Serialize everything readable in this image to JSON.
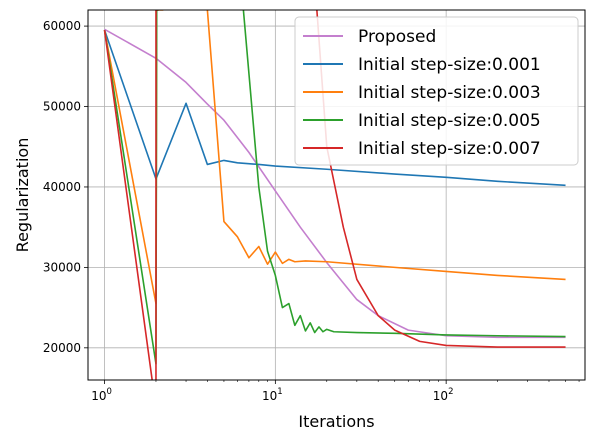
{
  "chart_data": {
    "type": "line",
    "title": "",
    "xlabel": "Iterations",
    "ylabel": "Regularization",
    "xscale": "log",
    "xlim": [
      0.8,
      650
    ],
    "ylim": [
      16000,
      62000
    ],
    "grid": true,
    "legend_position": "upper right",
    "x_ticks": [
      {
        "value": 1,
        "base": "10",
        "exp": "0"
      },
      {
        "value": 10,
        "base": "10",
        "exp": "1"
      },
      {
        "value": 100,
        "base": "10",
        "exp": "2"
      }
    ],
    "y_ticks": [
      {
        "value": 20000,
        "label": "20000"
      },
      {
        "value": 30000,
        "label": "30000"
      },
      {
        "value": 40000,
        "label": "40000"
      },
      {
        "value": 50000,
        "label": "50000"
      },
      {
        "value": 60000,
        "label": "60000"
      }
    ],
    "series": [
      {
        "name": "Proposed",
        "color": "#c47fce",
        "points": [
          [
            1,
            59600
          ],
          [
            2,
            56000
          ],
          [
            3,
            53000
          ],
          [
            4,
            50300
          ],
          [
            5,
            48300
          ],
          [
            7,
            44300
          ],
          [
            10,
            39500
          ],
          [
            14,
            35000
          ],
          [
            20,
            30600
          ],
          [
            30,
            26000
          ],
          [
            40,
            24000
          ],
          [
            60,
            22200
          ],
          [
            100,
            21500
          ],
          [
            200,
            21300
          ],
          [
            500,
            21300
          ]
        ]
      },
      {
        "name": "Initial step-size:0.001",
        "color": "#1f77b4",
        "points": [
          [
            1,
            59500
          ],
          [
            2,
            41000
          ],
          [
            3,
            50400
          ],
          [
            4,
            42800
          ],
          [
            5,
            43300
          ],
          [
            6,
            43000
          ],
          [
            8,
            42800
          ],
          [
            10,
            42600
          ],
          [
            20,
            42200
          ],
          [
            50,
            41600
          ],
          [
            100,
            41200
          ],
          [
            200,
            40700
          ],
          [
            500,
            40200
          ]
        ]
      },
      {
        "name": "Initial step-size:0.003",
        "color": "#ff7f0e",
        "points": [
          [
            1,
            59500
          ],
          [
            2,
            25500
          ],
          [
            2.02,
            62000
          ],
          [
            2.2,
            62000
          ],
          [
            2.25,
            65000
          ],
          [
            3.7,
            65000
          ],
          [
            4,
            62000
          ],
          [
            5,
            35700
          ],
          [
            6,
            33800
          ],
          [
            7,
            31200
          ],
          [
            8,
            32600
          ],
          [
            9,
            30400
          ],
          [
            10,
            31900
          ],
          [
            11,
            30500
          ],
          [
            12,
            31000
          ],
          [
            13,
            30700
          ],
          [
            15,
            30800
          ],
          [
            20,
            30700
          ],
          [
            50,
            30000
          ],
          [
            100,
            29500
          ],
          [
            200,
            29000
          ],
          [
            500,
            28500
          ]
        ]
      },
      {
        "name": "Initial step-size:0.005",
        "color": "#2ca02c",
        "points": [
          [
            1,
            59500
          ],
          [
            2,
            18000
          ],
          [
            2.02,
            62000
          ],
          [
            2.06,
            62000
          ],
          [
            2.08,
            65000
          ],
          [
            6.4,
            65000
          ],
          [
            6.5,
            62000
          ],
          [
            8,
            40000
          ],
          [
            9,
            32000
          ],
          [
            10,
            29000
          ],
          [
            11,
            25000
          ],
          [
            12,
            25500
          ],
          [
            13,
            22800
          ],
          [
            14,
            24000
          ],
          [
            15,
            22100
          ],
          [
            16,
            23100
          ],
          [
            17,
            21900
          ],
          [
            18,
            22600
          ],
          [
            19,
            22000
          ],
          [
            20,
            22300
          ],
          [
            22,
            22000
          ],
          [
            30,
            21900
          ],
          [
            50,
            21800
          ],
          [
            100,
            21600
          ],
          [
            200,
            21500
          ],
          [
            500,
            21400
          ]
        ]
      },
      {
        "name": "Initial step-size:0.007",
        "color": "#d62728",
        "points": [
          [
            1,
            59500
          ],
          [
            1.9,
            16000
          ],
          [
            1.9,
            15000
          ],
          [
            2,
            15000
          ],
          [
            2,
            62000
          ],
          [
            2.05,
            62000
          ],
          [
            2.08,
            65000
          ],
          [
            17,
            65000
          ],
          [
            17.5,
            62000
          ],
          [
            20,
            45000
          ],
          [
            25,
            35000
          ],
          [
            30,
            28500
          ],
          [
            40,
            24000
          ],
          [
            50,
            22200
          ],
          [
            70,
            20800
          ],
          [
            100,
            20300
          ],
          [
            200,
            20100
          ],
          [
            500,
            20100
          ]
        ]
      }
    ]
  }
}
